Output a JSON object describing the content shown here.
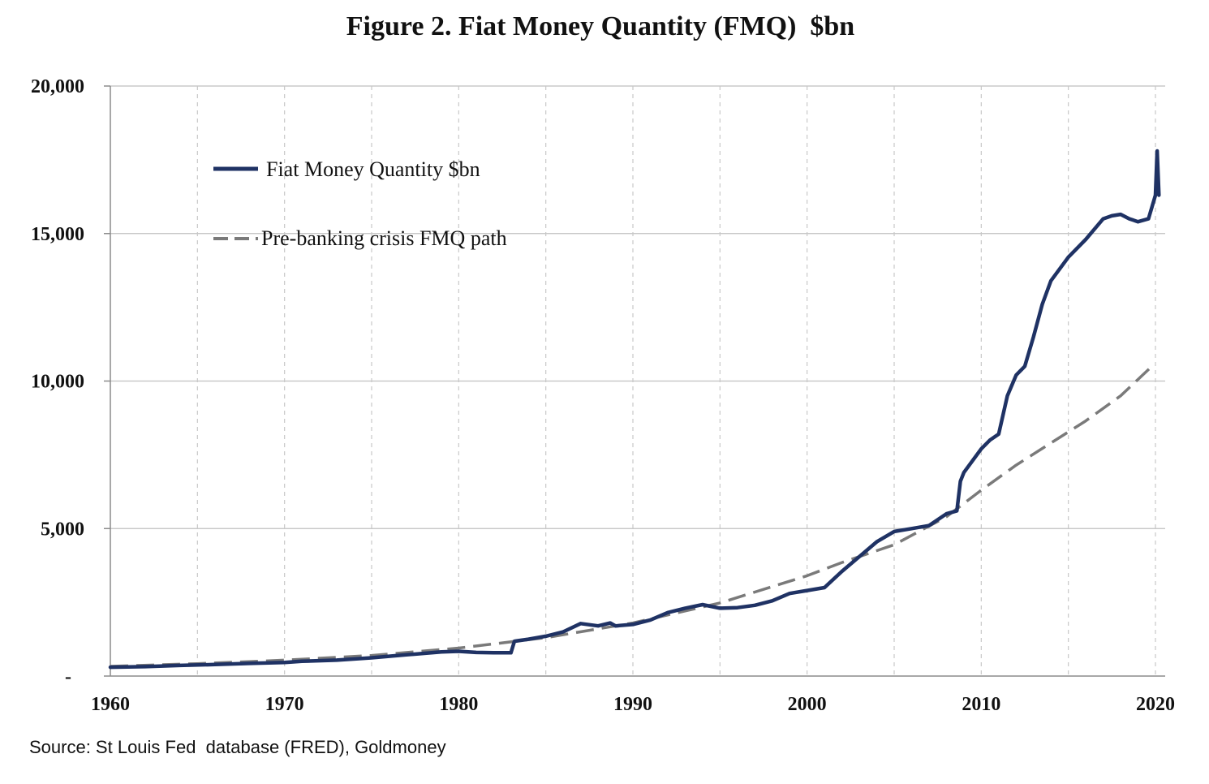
{
  "chart_data": {
    "type": "line",
    "title": "Figure 2. Fiat Money Quantity (FMQ)  $bn",
    "source": "Source: St Louis Fed  database (FRED), Goldmoney",
    "xlabel": "",
    "ylabel": "",
    "xlim": [
      1960,
      2020.3
    ],
    "ylim": [
      0,
      20000
    ],
    "x_ticks": [
      1960,
      1970,
      1980,
      1990,
      2000,
      2010,
      2020
    ],
    "x_tick_labels": [
      "1960",
      "1970",
      "1980",
      "1990",
      "2000",
      "2010",
      "2020"
    ],
    "x_grid_years": [
      1965,
      1970,
      1975,
      1980,
      1985,
      1990,
      1995,
      2000,
      2005,
      2010,
      2015,
      2020
    ],
    "y_ticks": [
      0,
      5000,
      10000,
      15000,
      20000
    ],
    "y_tick_labels": [
      "-",
      "5,000",
      "10,000",
      "15,000",
      "20,000"
    ],
    "grid": true,
    "legend_position": "top-left",
    "series": [
      {
        "name": "Fiat Money Quantity $bn",
        "color": "#1f3264",
        "style": "solid",
        "points": [
          [
            1960,
            300
          ],
          [
            1962,
            320
          ],
          [
            1964,
            360
          ],
          [
            1966,
            390
          ],
          [
            1968,
            430
          ],
          [
            1970,
            460
          ],
          [
            1971,
            500
          ],
          [
            1973,
            540
          ],
          [
            1975,
            620
          ],
          [
            1977,
            720
          ],
          [
            1979,
            820
          ],
          [
            1980,
            840
          ],
          [
            1981,
            800
          ],
          [
            1982,
            790
          ],
          [
            1983.0,
            790
          ],
          [
            1983.2,
            1180
          ],
          [
            1984,
            1250
          ],
          [
            1985,
            1350
          ],
          [
            1986,
            1500
          ],
          [
            1987,
            1780
          ],
          [
            1988,
            1700
          ],
          [
            1988.7,
            1800
          ],
          [
            1989,
            1700
          ],
          [
            1990,
            1750
          ],
          [
            1991,
            1900
          ],
          [
            1992,
            2150
          ],
          [
            1993,
            2300
          ],
          [
            1994,
            2420
          ],
          [
            1995,
            2300
          ],
          [
            1996,
            2320
          ],
          [
            1997,
            2400
          ],
          [
            1998,
            2550
          ],
          [
            1999,
            2800
          ],
          [
            2000,
            2900
          ],
          [
            2001,
            3000
          ],
          [
            2002,
            3550
          ],
          [
            2003,
            4050
          ],
          [
            2004,
            4550
          ],
          [
            2005,
            4900
          ],
          [
            2006,
            5000
          ],
          [
            2007,
            5100
          ],
          [
            2008,
            5500
          ],
          [
            2008.6,
            5600
          ],
          [
            2008.8,
            6600
          ],
          [
            2009,
            6900
          ],
          [
            2010,
            7700
          ],
          [
            2010.5,
            8000
          ],
          [
            2011,
            8200
          ],
          [
            2011.5,
            9500
          ],
          [
            2012,
            10200
          ],
          [
            2012.5,
            10500
          ],
          [
            2013,
            11500
          ],
          [
            2013.5,
            12600
          ],
          [
            2014,
            13400
          ],
          [
            2015,
            14200
          ],
          [
            2016,
            14800
          ],
          [
            2017,
            15500
          ],
          [
            2017.5,
            15600
          ],
          [
            2018,
            15650
          ],
          [
            2018.5,
            15500
          ],
          [
            2019,
            15400
          ],
          [
            2019.6,
            15500
          ],
          [
            2020.0,
            16300
          ],
          [
            2020.1,
            17800
          ],
          [
            2020.2,
            16300
          ]
        ]
      },
      {
        "name": "Pre-banking crisis FMQ path",
        "color": "#7a7a7a",
        "style": "dashed",
        "points": [
          [
            1960,
            330
          ],
          [
            1965,
            420
          ],
          [
            1970,
            540
          ],
          [
            1975,
            700
          ],
          [
            1980,
            950
          ],
          [
            1985,
            1300
          ],
          [
            1990,
            1800
          ],
          [
            1995,
            2480
          ],
          [
            2000,
            3400
          ],
          [
            2002,
            3850
          ],
          [
            2005,
            4450
          ],
          [
            2008,
            5400
          ],
          [
            2010,
            6300
          ],
          [
            2012,
            7150
          ],
          [
            2014,
            7900
          ],
          [
            2016,
            8650
          ],
          [
            2018,
            9500
          ],
          [
            2019.8,
            10500
          ]
        ]
      }
    ]
  }
}
